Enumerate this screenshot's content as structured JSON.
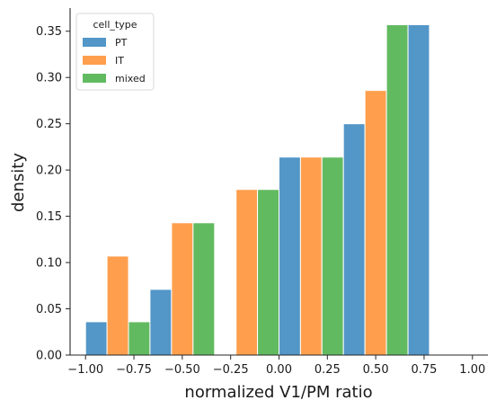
{
  "chart_data": {
    "type": "bar",
    "subtype": "grouped-histogram",
    "xlabel": "normalized V1/PM ratio",
    "ylabel": "density",
    "xlim": [
      -1.08,
      1.08
    ],
    "ylim": [
      0,
      0.375
    ],
    "xticks": [
      -1.0,
      -0.75,
      -0.5,
      -0.25,
      0.0,
      0.25,
      0.5,
      0.75,
      1.0
    ],
    "xtick_labels": [
      "−1.00",
      "−0.75",
      "−0.50",
      "−0.25",
      "0.00",
      "0.25",
      "0.50",
      "0.75",
      "1.00"
    ],
    "yticks": [
      0.0,
      0.05,
      0.1,
      0.15,
      0.2,
      0.25,
      0.3,
      0.35
    ],
    "ytick_labels": [
      "0.00",
      "0.05",
      "0.10",
      "0.15",
      "0.20",
      "0.25",
      "0.30",
      "0.35"
    ],
    "grid": false,
    "legend": {
      "title": "cell_type",
      "placement": "top-left"
    },
    "bin_edges": [
      -1.0,
      -0.667,
      -0.333,
      0.0,
      0.333,
      0.667,
      1.0
    ],
    "series": [
      {
        "name": "PT",
        "color": "#3b87c0",
        "values": [
          0.036,
          0.071,
          0.0,
          0.214,
          0.25,
          0.357
        ]
      },
      {
        "name": "IT",
        "color": "#ff9234",
        "values": [
          0.107,
          0.143,
          0.179,
          0.214,
          0.286,
          0.0
        ]
      },
      {
        "name": "mixed",
        "color": "#4cb04a",
        "values": [
          0.036,
          0.143,
          0.179,
          0.214,
          0.357,
          0.0
        ]
      }
    ]
  }
}
